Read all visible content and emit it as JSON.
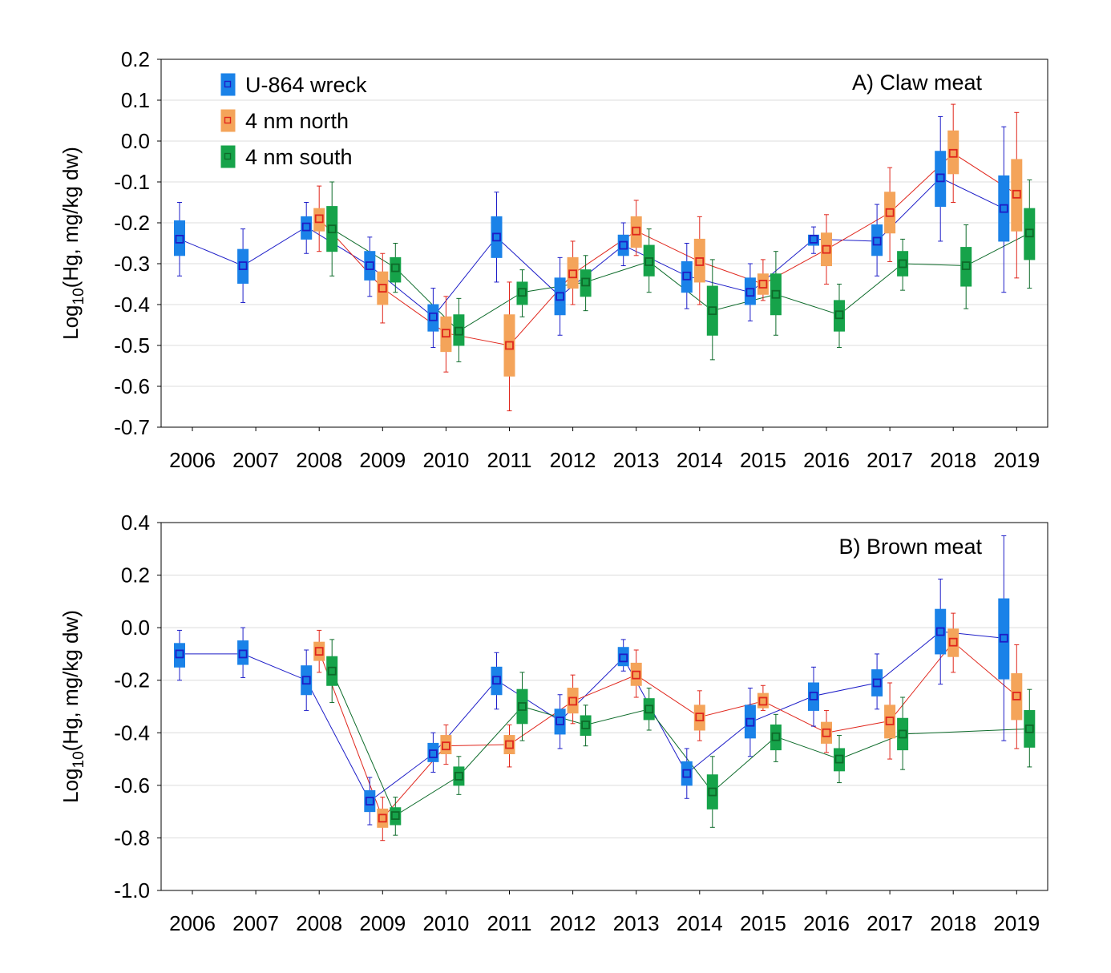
{
  "colors": {
    "U-864 wreck": "#1a82e8",
    "4 nm north": "#f4a45a",
    "4 nm south": "#16a34a"
  },
  "median_colors": {
    "U-864 wreck": "#1d1dc8",
    "4 nm north": "#e0261c",
    "4 nm south": "#0d6b2a"
  },
  "legend": [
    "U-864 wreck",
    "4 nm north",
    "4 nm south"
  ],
  "chart_data": [
    {
      "type": "box",
      "title": "A) Claw meat",
      "ylabel": "Log10(Hg, mg/kg dw)",
      "ylabel_main": "Log",
      "ylabel_sub": "10",
      "ylabel_rest": "(Hg, mg/kg dw)",
      "ylim": [
        -0.7,
        0.2
      ],
      "yticks": [
        0.2,
        0.1,
        0.0,
        -0.1,
        -0.2,
        -0.3,
        -0.4,
        -0.5,
        -0.6,
        -0.7
      ],
      "ytick_labels": [
        "0.2",
        "0.1",
        "0.0",
        "-0.1",
        "-0.2",
        "-0.3",
        "-0.4",
        "-0.5",
        "-0.6",
        "-0.7"
      ],
      "categories": [
        "2006",
        "2007",
        "2008",
        "2009",
        "2010",
        "2011",
        "2012",
        "2013",
        "2014",
        "2015",
        "2016",
        "2017",
        "2018",
        "2019"
      ],
      "series": [
        {
          "name": "U-864 wreck",
          "boxes": [
            {
              "x": "2006",
              "min": -0.33,
              "q1": -0.28,
              "median": -0.24,
              "q3": -0.195,
              "max": -0.15
            },
            {
              "x": "2007",
              "min": -0.395,
              "q1": -0.348,
              "median": -0.305,
              "q3": -0.265,
              "max": -0.215
            },
            {
              "x": "2008",
              "min": -0.275,
              "q1": -0.24,
              "median": -0.21,
              "q3": -0.185,
              "max": -0.15
            },
            {
              "x": "2009",
              "min": -0.38,
              "q1": -0.34,
              "median": -0.305,
              "q3": -0.27,
              "max": -0.235
            },
            {
              "x": "2010",
              "min": -0.505,
              "q1": -0.465,
              "median": -0.43,
              "q3": -0.4,
              "max": -0.36
            },
            {
              "x": "2011",
              "min": -0.345,
              "q1": -0.285,
              "median": -0.235,
              "q3": -0.185,
              "max": -0.125
            },
            {
              "x": "2012",
              "min": -0.475,
              "q1": -0.425,
              "median": -0.38,
              "q3": -0.335,
              "max": -0.285
            },
            {
              "x": "2013",
              "min": -0.305,
              "q1": -0.28,
              "median": -0.255,
              "q3": -0.23,
              "max": -0.2
            },
            {
              "x": "2014",
              "min": -0.41,
              "q1": -0.37,
              "median": -0.33,
              "q3": -0.295,
              "max": -0.25
            },
            {
              "x": "2015",
              "min": -0.44,
              "q1": -0.4,
              "median": -0.37,
              "q3": -0.335,
              "max": -0.3
            },
            {
              "x": "2016",
              "min": -0.275,
              "q1": -0.255,
              "median": -0.24,
              "q3": -0.23,
              "max": -0.21
            },
            {
              "x": "2017",
              "min": -0.33,
              "q1": -0.28,
              "median": -0.245,
              "q3": -0.205,
              "max": -0.155
            },
            {
              "x": "2018",
              "min": -0.245,
              "q1": -0.16,
              "median": -0.09,
              "q3": -0.025,
              "max": 0.06
            },
            {
              "x": "2019",
              "min": -0.37,
              "q1": -0.245,
              "median": -0.165,
              "q3": -0.085,
              "max": 0.035
            }
          ]
        },
        {
          "name": "4 nm north",
          "boxes": [
            {
              "x": "2008",
              "min": -0.27,
              "q1": -0.22,
              "median": -0.19,
              "q3": -0.165,
              "max": -0.11
            },
            {
              "x": "2009",
              "min": -0.445,
              "q1": -0.4,
              "median": -0.36,
              "q3": -0.32,
              "max": -0.275
            },
            {
              "x": "2010",
              "min": -0.565,
              "q1": -0.515,
              "median": -0.47,
              "q3": -0.43,
              "max": -0.38
            },
            {
              "x": "2011",
              "min": -0.66,
              "q1": -0.575,
              "median": -0.5,
              "q3": -0.425,
              "max": -0.345
            },
            {
              "x": "2012",
              "min": -0.4,
              "q1": -0.36,
              "median": -0.325,
              "q3": -0.285,
              "max": -0.245
            },
            {
              "x": "2013",
              "min": -0.28,
              "q1": -0.26,
              "median": -0.22,
              "q3": -0.185,
              "max": -0.145
            },
            {
              "x": "2014",
              "min": -0.4,
              "q1": -0.345,
              "median": -0.295,
              "q3": -0.24,
              "max": -0.185
            },
            {
              "x": "2015",
              "min": -0.39,
              "q1": -0.375,
              "median": -0.35,
              "q3": -0.325,
              "max": -0.29
            },
            {
              "x": "2016",
              "min": -0.35,
              "q1": -0.305,
              "median": -0.265,
              "q3": -0.225,
              "max": -0.18
            },
            {
              "x": "2017",
              "min": -0.295,
              "q1": -0.225,
              "median": -0.175,
              "q3": -0.125,
              "max": -0.065
            },
            {
              "x": "2018",
              "min": -0.15,
              "q1": -0.08,
              "median": -0.03,
              "q3": 0.025,
              "max": 0.09
            },
            {
              "x": "2019",
              "min": -0.335,
              "q1": -0.22,
              "median": -0.13,
              "q3": -0.045,
              "max": 0.07
            }
          ]
        },
        {
          "name": "4 nm south",
          "boxes": [
            {
              "x": "2008",
              "min": -0.33,
              "q1": -0.27,
              "median": -0.215,
              "q3": -0.16,
              "max": -0.1
            },
            {
              "x": "2009",
              "min": -0.37,
              "q1": -0.345,
              "median": -0.31,
              "q3": -0.285,
              "max": -0.25
            },
            {
              "x": "2010",
              "min": -0.54,
              "q1": -0.5,
              "median": -0.465,
              "q3": -0.425,
              "max": -0.385
            },
            {
              "x": "2011",
              "min": -0.43,
              "q1": -0.4,
              "median": -0.37,
              "q3": -0.345,
              "max": -0.315
            },
            {
              "x": "2012",
              "min": -0.415,
              "q1": -0.38,
              "median": -0.345,
              "q3": -0.315,
              "max": -0.28
            },
            {
              "x": "2013",
              "min": -0.37,
              "q1": -0.33,
              "median": -0.295,
              "q3": -0.255,
              "max": -0.215
            },
            {
              "x": "2014",
              "min": -0.535,
              "q1": -0.475,
              "median": -0.415,
              "q3": -0.355,
              "max": -0.29
            },
            {
              "x": "2015",
              "min": -0.475,
              "q1": -0.425,
              "median": -0.375,
              "q3": -0.325,
              "max": -0.27
            },
            {
              "x": "2016",
              "min": -0.505,
              "q1": -0.465,
              "median": -0.425,
              "q3": -0.39,
              "max": -0.35
            },
            {
              "x": "2017",
              "min": -0.365,
              "q1": -0.33,
              "median": -0.3,
              "q3": -0.27,
              "max": -0.24
            },
            {
              "x": "2018",
              "min": -0.41,
              "q1": -0.355,
              "median": -0.305,
              "q3": -0.26,
              "max": -0.205
            },
            {
              "x": "2019",
              "min": -0.36,
              "q1": -0.29,
              "median": -0.225,
              "q3": -0.165,
              "max": -0.095
            }
          ]
        }
      ]
    },
    {
      "type": "box",
      "title": "B) Brown meat",
      "ylabel": "Log10(Hg, mg/kg dw)",
      "ylabel_main": "Log",
      "ylabel_sub": "10",
      "ylabel_rest": "(Hg, mg/kg dw)",
      "ylim": [
        -1.0,
        0.4
      ],
      "yticks": [
        0.4,
        0.2,
        0.0,
        -0.2,
        -0.4,
        -0.6,
        -0.8,
        -1.0
      ],
      "ytick_labels": [
        "0.4",
        "0.2",
        "0.0",
        "-0.2",
        "-0.4",
        "-0.6",
        "-0.8",
        "-1.0"
      ],
      "categories": [
        "2006",
        "2007",
        "2008",
        "2009",
        "2010",
        "2011",
        "2012",
        "2013",
        "2014",
        "2015",
        "2016",
        "2017",
        "2018",
        "2019"
      ],
      "series": [
        {
          "name": "U-864 wreck",
          "boxes": [
            {
              "x": "2006",
              "min": -0.2,
              "q1": -0.15,
              "median": -0.1,
              "q3": -0.06,
              "max": -0.01
            },
            {
              "x": "2007",
              "min": -0.19,
              "q1": -0.14,
              "median": -0.1,
              "q3": -0.05,
              "max": 0.0
            },
            {
              "x": "2008",
              "min": -0.315,
              "q1": -0.255,
              "median": -0.2,
              "q3": -0.145,
              "max": -0.085
            },
            {
              "x": "2009",
              "min": -0.75,
              "q1": -0.7,
              "median": -0.66,
              "q3": -0.62,
              "max": -0.57
            },
            {
              "x": "2010",
              "min": -0.55,
              "q1": -0.51,
              "median": -0.48,
              "q3": -0.44,
              "max": -0.4
            },
            {
              "x": "2011",
              "min": -0.31,
              "q1": -0.255,
              "median": -0.2,
              "q3": -0.15,
              "max": -0.095
            },
            {
              "x": "2012",
              "min": -0.46,
              "q1": -0.405,
              "median": -0.355,
              "q3": -0.31,
              "max": -0.255
            },
            {
              "x": "2013",
              "min": -0.165,
              "q1": -0.145,
              "median": -0.115,
              "q3": -0.075,
              "max": -0.045
            },
            {
              "x": "2014",
              "min": -0.65,
              "q1": -0.6,
              "median": -0.555,
              "q3": -0.51,
              "max": -0.46
            },
            {
              "x": "2015",
              "min": -0.49,
              "q1": -0.42,
              "median": -0.36,
              "q3": -0.295,
              "max": -0.23
            },
            {
              "x": "2016",
              "min": -0.375,
              "q1": -0.315,
              "median": -0.26,
              "q3": -0.21,
              "max": -0.15
            },
            {
              "x": "2017",
              "min": -0.31,
              "q1": -0.26,
              "median": -0.21,
              "q3": -0.16,
              "max": -0.1
            },
            {
              "x": "2018",
              "min": -0.215,
              "q1": -0.1,
              "median": -0.015,
              "q3": 0.07,
              "max": 0.185
            },
            {
              "x": "2019",
              "min": -0.43,
              "q1": -0.195,
              "median": -0.04,
              "q3": 0.11,
              "max": 0.35
            }
          ]
        },
        {
          "name": "4 nm north",
          "boxes": [
            {
              "x": "2008",
              "min": -0.17,
              "q1": -0.125,
              "median": -0.09,
              "q3": -0.055,
              "max": -0.01
            },
            {
              "x": "2009",
              "min": -0.81,
              "q1": -0.76,
              "median": -0.725,
              "q3": -0.69,
              "max": -0.645
            },
            {
              "x": "2010",
              "min": -0.52,
              "q1": -0.48,
              "median": -0.45,
              "q3": -0.41,
              "max": -0.37
            },
            {
              "x": "2011",
              "min": -0.53,
              "q1": -0.48,
              "median": -0.445,
              "q3": -0.41,
              "max": -0.37
            },
            {
              "x": "2012",
              "min": -0.365,
              "q1": -0.325,
              "median": -0.28,
              "q3": -0.23,
              "max": -0.18
            },
            {
              "x": "2013",
              "min": -0.265,
              "q1": -0.22,
              "median": -0.18,
              "q3": -0.135,
              "max": -0.085
            },
            {
              "x": "2014",
              "min": -0.43,
              "q1": -0.39,
              "median": -0.34,
              "q3": -0.295,
              "max": -0.24
            },
            {
              "x": "2015",
              "min": -0.315,
              "q1": -0.305,
              "median": -0.28,
              "q3": -0.25,
              "max": -0.22
            },
            {
              "x": "2016",
              "min": -0.475,
              "q1": -0.44,
              "median": -0.4,
              "q3": -0.36,
              "max": -0.315
            },
            {
              "x": "2017",
              "min": -0.5,
              "q1": -0.42,
              "median": -0.355,
              "q3": -0.295,
              "max": -0.21
            },
            {
              "x": "2018",
              "min": -0.17,
              "q1": -0.11,
              "median": -0.055,
              "q3": -0.005,
              "max": 0.055
            },
            {
              "x": "2019",
              "min": -0.46,
              "q1": -0.35,
              "median": -0.26,
              "q3": -0.175,
              "max": -0.065
            }
          ]
        },
        {
          "name": "4 nm south",
          "boxes": [
            {
              "x": "2008",
              "min": -0.285,
              "q1": -0.22,
              "median": -0.165,
              "q3": -0.11,
              "max": -0.045
            },
            {
              "x": "2009",
              "min": -0.79,
              "q1": -0.75,
              "median": -0.715,
              "q3": -0.685,
              "max": -0.645
            },
            {
              "x": "2010",
              "min": -0.635,
              "q1": -0.6,
              "median": -0.565,
              "q3": -0.53,
              "max": -0.49
            },
            {
              "x": "2011",
              "min": -0.43,
              "q1": -0.365,
              "median": -0.3,
              "q3": -0.235,
              "max": -0.17
            },
            {
              "x": "2012",
              "min": -0.45,
              "q1": -0.41,
              "median": -0.37,
              "q3": -0.335,
              "max": -0.295
            },
            {
              "x": "2013",
              "min": -0.39,
              "q1": -0.35,
              "median": -0.31,
              "q3": -0.27,
              "max": -0.23
            },
            {
              "x": "2014",
              "min": -0.76,
              "q1": -0.69,
              "median": -0.625,
              "q3": -0.56,
              "max": -0.49
            },
            {
              "x": "2015",
              "min": -0.51,
              "q1": -0.465,
              "median": -0.415,
              "q3": -0.37,
              "max": -0.33
            },
            {
              "x": "2016",
              "min": -0.59,
              "q1": -0.545,
              "median": -0.5,
              "q3": -0.46,
              "max": -0.41
            },
            {
              "x": "2017",
              "min": -0.54,
              "q1": -0.465,
              "median": -0.405,
              "q3": -0.345,
              "max": -0.265
            },
            {
              "x": "2019",
              "min": -0.53,
              "q1": -0.455,
              "median": -0.385,
              "q3": -0.315,
              "max": -0.235
            }
          ]
        }
      ]
    }
  ]
}
